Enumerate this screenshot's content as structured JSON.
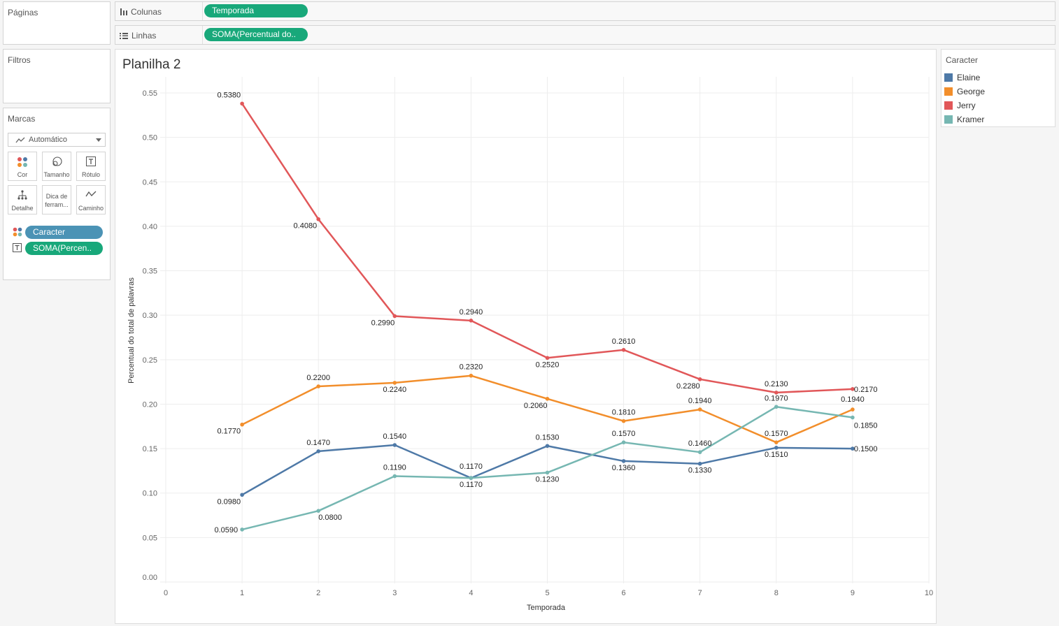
{
  "pages_card": {
    "title": "Páginas"
  },
  "filters_card": {
    "title": "Filtros"
  },
  "marks_card": {
    "title": "Marcas",
    "mark_type": "Automático",
    "buttons": {
      "color": "Cor",
      "size": "Tamanho",
      "label": "Rótulo",
      "detail": "Detalhe",
      "tooltip_line1": "Dica de",
      "tooltip_line2": "ferram...",
      "path": "Caminho"
    },
    "fields": {
      "color_field": "Caracter",
      "label_field": "SOMA(Percen.."
    }
  },
  "shelves": {
    "columns_label": "Colunas",
    "columns_pill": "Temporada",
    "rows_label": "Linhas",
    "rows_pill": "SOMA(Percentual do.."
  },
  "sheet": {
    "title": "Planilha 2"
  },
  "legend": {
    "title": "Caracter",
    "items": [
      {
        "name": "Elaine",
        "color": "#4e79a7"
      },
      {
        "name": "George",
        "color": "#f28e2b"
      },
      {
        "name": "Jerry",
        "color": "#e15759"
      },
      {
        "name": "Kramer",
        "color": "#76b7b2"
      }
    ]
  },
  "chart_data": {
    "type": "line",
    "title": "Planilha 2",
    "xlabel": "Temporada",
    "ylabel": "Percentual do total de palavras",
    "xlim": [
      0,
      10
    ],
    "ylim": [
      0,
      0.55
    ],
    "x_ticks": [
      "0",
      "1",
      "2",
      "3",
      "4",
      "5",
      "6",
      "7",
      "8",
      "9",
      "10"
    ],
    "y_ticks": [
      "0.00",
      "0.05",
      "0.10",
      "0.15",
      "0.20",
      "0.25",
      "0.30",
      "0.35",
      "0.40",
      "0.45",
      "0.50",
      "0.55"
    ],
    "x": [
      1,
      2,
      3,
      4,
      5,
      6,
      7,
      8,
      9
    ],
    "grid": true,
    "series": [
      {
        "name": "Elaine",
        "color": "#4e79a7",
        "values": [
          0.098,
          0.147,
          0.154,
          0.117,
          0.153,
          0.136,
          0.133,
          0.151,
          0.15
        ],
        "labels": [
          "0.0980",
          "0.1470",
          "0.1540",
          "0.1170",
          "0.1530",
          "0.1360",
          "0.1330",
          "0.1510",
          "0.1500"
        ]
      },
      {
        "name": "George",
        "color": "#f28e2b",
        "values": [
          0.177,
          0.22,
          0.224,
          0.232,
          0.206,
          0.181,
          0.194,
          0.157,
          0.194
        ],
        "labels": [
          "0.1770",
          "0.2200",
          "0.2240",
          "0.2320",
          "0.2060",
          "0.1810",
          "0.1940",
          "0.1570",
          "0.1940"
        ]
      },
      {
        "name": "Jerry",
        "color": "#e15759",
        "values": [
          0.538,
          0.408,
          0.299,
          0.294,
          0.252,
          0.261,
          0.228,
          0.213,
          0.217
        ],
        "labels": [
          "0.5380",
          "0.4080",
          "0.2990",
          "0.2940",
          "0.2520",
          "0.2610",
          "0.2280",
          "0.2130",
          "0.2170"
        ]
      },
      {
        "name": "Kramer",
        "color": "#76b7b2",
        "values": [
          0.059,
          0.08,
          0.119,
          0.117,
          0.123,
          0.157,
          0.146,
          0.197,
          0.185
        ],
        "labels": [
          "0.0590",
          "0.0800",
          "0.1190",
          "0.1170",
          "0.1230",
          "0.1570",
          "0.1460",
          "0.1970",
          "0.1850"
        ]
      }
    ]
  }
}
